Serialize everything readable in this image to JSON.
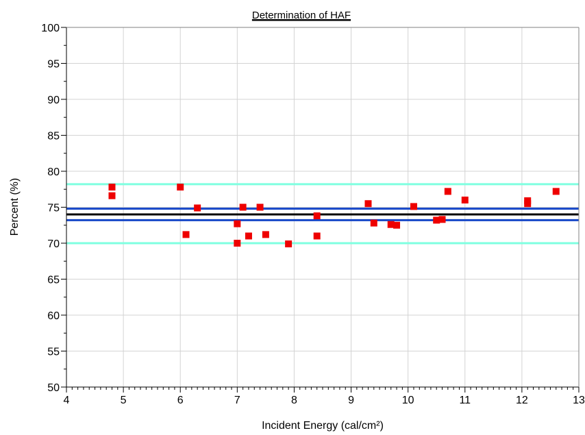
{
  "chart_data": {
    "type": "scatter",
    "title": "Determination of HAF",
    "xlabel": "Incident Energy (cal/cm²)",
    "ylabel": "Percent (%)",
    "xlim": [
      4,
      13
    ],
    "ylim": [
      50,
      100
    ],
    "x_ticks": [
      "4",
      "5",
      "6",
      "7",
      "8",
      "9",
      "10",
      "11",
      "12",
      "13"
    ],
    "y_ticks": [
      "50",
      "55",
      "60",
      "65",
      "70",
      "75",
      "80",
      "85",
      "90",
      "95",
      "100"
    ],
    "grid": true,
    "series": [
      {
        "marker": "square",
        "color": "#ee0000",
        "points": [
          [
            4.8,
            77.8
          ],
          [
            4.8,
            76.6
          ],
          [
            6.0,
            77.8
          ],
          [
            6.1,
            71.2
          ],
          [
            6.3,
            74.9
          ],
          [
            7.0,
            72.7
          ],
          [
            7.0,
            70.0
          ],
          [
            7.1,
            75.0
          ],
          [
            7.2,
            71.0
          ],
          [
            7.4,
            75.0
          ],
          [
            7.5,
            71.2
          ],
          [
            7.9,
            69.9
          ],
          [
            8.4,
            73.8
          ],
          [
            8.4,
            71.0
          ],
          [
            9.3,
            75.5
          ],
          [
            9.4,
            72.8
          ],
          [
            9.7,
            72.6
          ],
          [
            9.8,
            72.5
          ],
          [
            10.1,
            75.1
          ],
          [
            10.5,
            73.2
          ],
          [
            10.6,
            73.3
          ],
          [
            10.7,
            77.2
          ],
          [
            11.0,
            76.0
          ],
          [
            12.1,
            75.9
          ],
          [
            12.1,
            75.5
          ],
          [
            12.6,
            77.2
          ]
        ]
      }
    ],
    "reference_lines": [
      {
        "y": 78.2,
        "color": "#7fffe0"
      },
      {
        "y": 74.8,
        "color": "#1546c8"
      },
      {
        "y": 74.0,
        "color": "#000000"
      },
      {
        "y": 73.2,
        "color": "#1546c8"
      },
      {
        "y": 70.0,
        "color": "#7fffe0"
      }
    ]
  }
}
